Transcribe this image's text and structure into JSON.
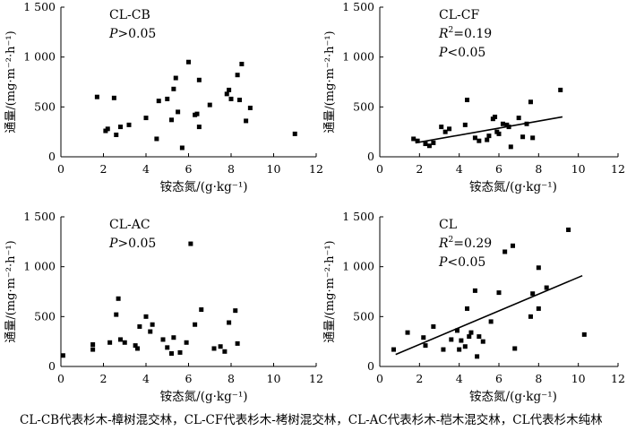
{
  "chart_data": [
    {
      "id": "cb",
      "type": "scatter",
      "title": "CL-CB",
      "stats": [
        {
          "sym": "P",
          "text": ">0.05"
        }
      ],
      "trendline": null,
      "xlabel": "铵态氮/(g·kg⁻¹)",
      "ylabel": "通量/(mg·m⁻²·h⁻¹)",
      "xlim": [
        0,
        12
      ],
      "ylim": [
        0,
        1500
      ],
      "xticks": [
        "0",
        "2",
        "4",
        "6",
        "8",
        "10",
        "12"
      ],
      "yticks": [
        "0",
        "500",
        "1 000",
        "1 500"
      ],
      "points": [
        [
          1.7,
          600
        ],
        [
          2.1,
          260
        ],
        [
          2.2,
          280
        ],
        [
          2.5,
          590
        ],
        [
          2.6,
          220
        ],
        [
          2.8,
          300
        ],
        [
          3.2,
          320
        ],
        [
          4.0,
          390
        ],
        [
          4.5,
          180
        ],
        [
          4.6,
          560
        ],
        [
          5.0,
          580
        ],
        [
          5.2,
          370
        ],
        [
          5.3,
          680
        ],
        [
          5.4,
          790
        ],
        [
          5.5,
          450
        ],
        [
          5.7,
          90
        ],
        [
          6.0,
          950
        ],
        [
          6.3,
          420
        ],
        [
          6.4,
          430
        ],
        [
          6.5,
          300
        ],
        [
          6.5,
          770
        ],
        [
          7.0,
          520
        ],
        [
          7.8,
          630
        ],
        [
          7.9,
          670
        ],
        [
          8.0,
          580
        ],
        [
          8.3,
          820
        ],
        [
          8.4,
          570
        ],
        [
          8.5,
          930
        ],
        [
          8.7,
          360
        ],
        [
          8.9,
          490
        ],
        [
          11.0,
          230
        ]
      ]
    },
    {
      "id": "cf",
      "type": "scatter",
      "title": "CL-CF",
      "stats": [
        {
          "sym": "R",
          "sup": "2",
          "text": "=0.19"
        },
        {
          "sym": "P",
          "text": "<0.05"
        }
      ],
      "trendline": [
        [
          1.8,
          140
        ],
        [
          9.2,
          400
        ]
      ],
      "xlabel": "铵态氮/(g·kg⁻¹)",
      "ylabel": "通量/(mg·m⁻²·h⁻¹)",
      "xlim": [
        0,
        12
      ],
      "ylim": [
        0,
        1500
      ],
      "xticks": [
        "0",
        "2",
        "4",
        "6",
        "8",
        "10",
        "12"
      ],
      "yticks": [
        "0",
        "500",
        "1 000",
        "1 500"
      ],
      "points": [
        [
          1.7,
          180
        ],
        [
          1.9,
          160
        ],
        [
          2.3,
          130
        ],
        [
          2.5,
          110
        ],
        [
          2.7,
          140
        ],
        [
          3.1,
          300
        ],
        [
          3.3,
          250
        ],
        [
          3.5,
          280
        ],
        [
          4.3,
          320
        ],
        [
          4.4,
          570
        ],
        [
          4.8,
          190
        ],
        [
          5.0,
          160
        ],
        [
          5.4,
          170
        ],
        [
          5.5,
          210
        ],
        [
          5.7,
          380
        ],
        [
          5.8,
          400
        ],
        [
          5.9,
          250
        ],
        [
          6.0,
          230
        ],
        [
          6.2,
          330
        ],
        [
          6.4,
          320
        ],
        [
          6.5,
          300
        ],
        [
          6.6,
          100
        ],
        [
          7.0,
          390
        ],
        [
          7.2,
          200
        ],
        [
          7.4,
          330
        ],
        [
          7.6,
          550
        ],
        [
          7.7,
          190
        ],
        [
          9.1,
          670
        ]
      ]
    },
    {
      "id": "ac",
      "type": "scatter",
      "title": "CL-AC",
      "stats": [
        {
          "sym": "P",
          "text": ">0.05"
        }
      ],
      "trendline": null,
      "xlabel": "铵态氮/(g·kg⁻¹)",
      "ylabel": "通量/(mg·m⁻²·h⁻¹)",
      "xlim": [
        0,
        12
      ],
      "ylim": [
        0,
        1500
      ],
      "xticks": [
        "0",
        "2",
        "4",
        "6",
        "8",
        "10",
        "12"
      ],
      "yticks": [
        "0",
        "500",
        "1 000",
        "1 500"
      ],
      "points": [
        [
          0.1,
          110
        ],
        [
          1.5,
          220
        ],
        [
          1.5,
          170
        ],
        [
          2.3,
          240
        ],
        [
          2.6,
          520
        ],
        [
          2.7,
          680
        ],
        [
          2.8,
          270
        ],
        [
          3.0,
          240
        ],
        [
          3.5,
          210
        ],
        [
          3.6,
          180
        ],
        [
          3.7,
          400
        ],
        [
          4.0,
          500
        ],
        [
          4.2,
          350
        ],
        [
          4.3,
          420
        ],
        [
          4.8,
          270
        ],
        [
          5.0,
          190
        ],
        [
          5.2,
          130
        ],
        [
          5.3,
          290
        ],
        [
          5.6,
          140
        ],
        [
          5.9,
          240
        ],
        [
          6.1,
          1230
        ],
        [
          6.3,
          420
        ],
        [
          6.6,
          570
        ],
        [
          7.2,
          180
        ],
        [
          7.5,
          200
        ],
        [
          7.7,
          150
        ],
        [
          7.9,
          440
        ],
        [
          8.2,
          560
        ],
        [
          8.3,
          230
        ]
      ]
    },
    {
      "id": "cl",
      "type": "scatter",
      "title": "CL",
      "stats": [
        {
          "sym": "R",
          "sup": "2",
          "text": "=0.29"
        },
        {
          "sym": "P",
          "text": "<0.05"
        }
      ],
      "trendline": [
        [
          0.8,
          120
        ],
        [
          10.2,
          910
        ]
      ],
      "xlabel": "铵态氮/(g·kg⁻¹)",
      "ylabel": "通量/(mg·m⁻²·h⁻¹)",
      "xlim": [
        0,
        12
      ],
      "ylim": [
        0,
        1500
      ],
      "xticks": [
        "0",
        "2",
        "4",
        "6",
        "8",
        "10",
        "12"
      ],
      "yticks": [
        "0",
        "500",
        "1 000",
        "1 500"
      ],
      "points": [
        [
          0.7,
          170
        ],
        [
          1.4,
          340
        ],
        [
          2.2,
          290
        ],
        [
          2.3,
          210
        ],
        [
          2.7,
          400
        ],
        [
          3.2,
          170
        ],
        [
          3.6,
          270
        ],
        [
          3.9,
          360
        ],
        [
          4.0,
          170
        ],
        [
          4.1,
          260
        ],
        [
          4.3,
          200
        ],
        [
          4.4,
          580
        ],
        [
          4.5,
          300
        ],
        [
          4.6,
          340
        ],
        [
          4.8,
          760
        ],
        [
          4.9,
          100
        ],
        [
          5.0,
          300
        ],
        [
          5.2,
          250
        ],
        [
          5.6,
          450
        ],
        [
          6.0,
          740
        ],
        [
          6.3,
          1150
        ],
        [
          6.7,
          1210
        ],
        [
          6.8,
          180
        ],
        [
          7.6,
          500
        ],
        [
          7.7,
          730
        ],
        [
          8.0,
          580
        ],
        [
          8.0,
          990
        ],
        [
          8.4,
          790
        ],
        [
          9.5,
          1370
        ],
        [
          10.3,
          320
        ]
      ]
    }
  ],
  "caption": "CL-CB代表杉木-樟树混交林，CL-CF代表杉木-栲树混交林，CL-AC代表杉木-桤木混交林，CL代表杉木纯林"
}
